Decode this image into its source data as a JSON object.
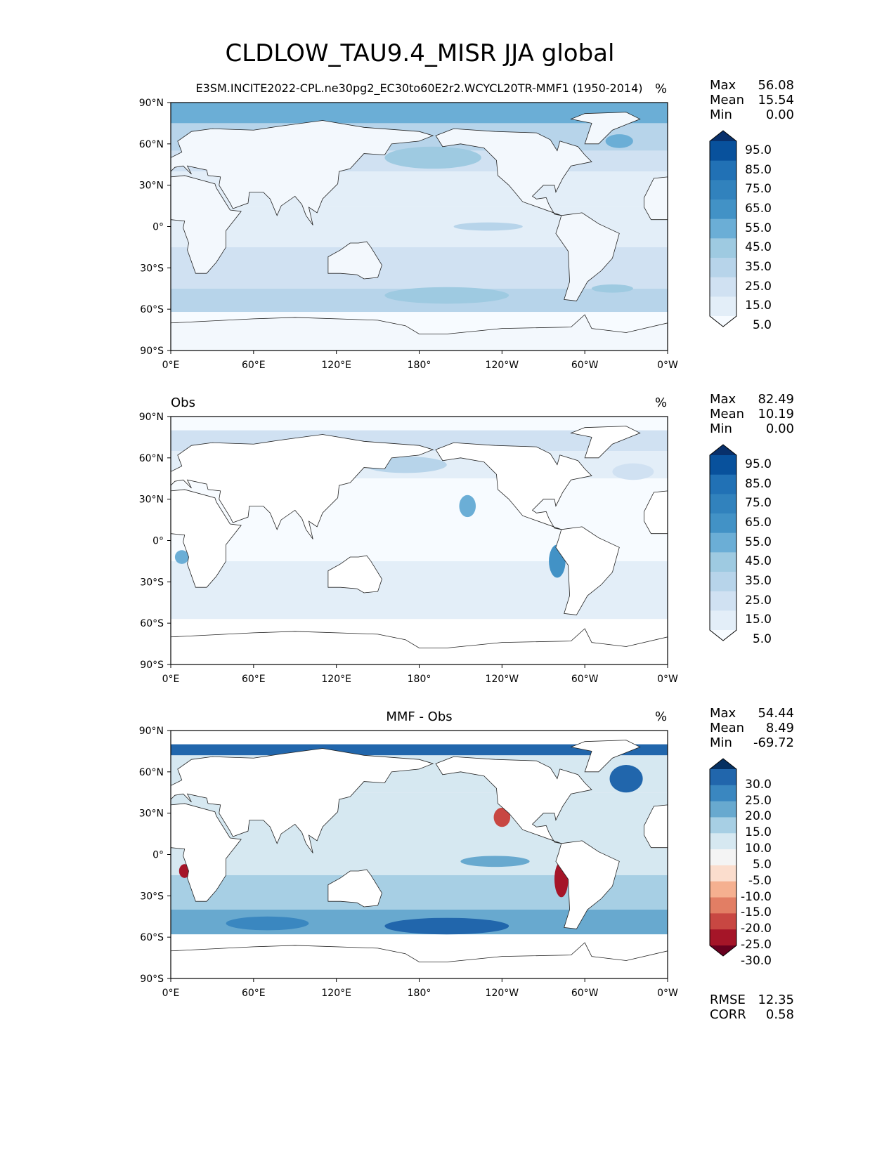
{
  "title": "CLDLOW_TAU9.4_MISR JJA global",
  "chart_data": [
    {
      "type": "heatmap",
      "left_title": "",
      "center_title": "E3SM.INCITE2022-CPL.ne30pg2_EC30to60E2r2.WCYCL20TR-MMF1 (1950-2014)",
      "right_title": "%",
      "stats": {
        "labels": [
          "Max",
          "Mean",
          "Min"
        ],
        "values": [
          "56.08",
          "15.54",
          "0.00"
        ]
      },
      "colorbar": {
        "ticks": [
          "95.0",
          "85.0",
          "75.0",
          "65.0",
          "55.0",
          "45.0",
          "35.0",
          "25.0",
          "15.0",
          "5.0"
        ],
        "colors": [
          "#08306b",
          "#08519c",
          "#2171b5",
          "#3182bd",
          "#4292c6",
          "#6baed6",
          "#9ecae1",
          "#b7d4ea",
          "#d0e1f2",
          "#e3eef8",
          "#f7fbff"
        ]
      },
      "xticks": [
        "0°E",
        "60°E",
        "120°E",
        "180°",
        "120°W",
        "60°W",
        "0°W"
      ],
      "yticks": [
        "90°N",
        "60°N",
        "30°N",
        "0°",
        "30°S",
        "60°S",
        "90°S"
      ],
      "xlim": [
        0,
        360
      ],
      "ylim": [
        -90,
        90
      ]
    },
    {
      "type": "heatmap",
      "left_title": "Obs",
      "center_title": "",
      "right_title": "%",
      "stats": {
        "labels": [
          "Max",
          "Mean",
          "Min"
        ],
        "values": [
          "82.49",
          "10.19",
          "0.00"
        ]
      },
      "colorbar": {
        "ticks": [
          "95.0",
          "85.0",
          "75.0",
          "65.0",
          "55.0",
          "45.0",
          "35.0",
          "25.0",
          "15.0",
          "5.0"
        ],
        "colors": [
          "#08306b",
          "#08519c",
          "#2171b5",
          "#3182bd",
          "#4292c6",
          "#6baed6",
          "#9ecae1",
          "#b7d4ea",
          "#d0e1f2",
          "#e3eef8",
          "#f7fbff"
        ]
      },
      "xticks": [
        "0°E",
        "60°E",
        "120°E",
        "180°",
        "120°W",
        "60°W",
        "0°W"
      ],
      "yticks": [
        "90°N",
        "60°N",
        "30°N",
        "0°",
        "30°S",
        "60°S",
        "90°S"
      ],
      "xlim": [
        0,
        360
      ],
      "ylim": [
        -90,
        90
      ]
    },
    {
      "type": "heatmap",
      "left_title": "",
      "center_title": "MMF - Obs",
      "right_title": "%",
      "stats": {
        "labels": [
          "Max",
          "Mean",
          "Min"
        ],
        "values": [
          "54.44",
          "8.49",
          "-69.72"
        ]
      },
      "extra_stats": {
        "labels": [
          "RMSE",
          "CORR"
        ],
        "values": [
          "12.35",
          "0.58"
        ]
      },
      "colorbar": {
        "ticks": [
          "30.0",
          "25.0",
          "20.0",
          "15.0",
          "10.0",
          "5.0",
          "-5.0",
          "-10.0",
          "-15.0",
          "-20.0",
          "-25.0",
          "-30.0"
        ],
        "colors": [
          "#053061",
          "#2166ac",
          "#3a87c0",
          "#68a9cf",
          "#a7cfe4",
          "#d6e8f1",
          "#f4f4f4",
          "#fbddcd",
          "#f5b090",
          "#e27e64",
          "#c84742",
          "#a51528",
          "#67001f"
        ]
      },
      "xticks": [
        "0°E",
        "60°E",
        "120°E",
        "180°",
        "120°W",
        "60°W",
        "0°W"
      ],
      "yticks": [
        "90°N",
        "60°N",
        "30°N",
        "0°",
        "30°S",
        "60°S",
        "90°S"
      ],
      "xlim": [
        0,
        360
      ],
      "ylim": [
        -90,
        90
      ]
    }
  ]
}
